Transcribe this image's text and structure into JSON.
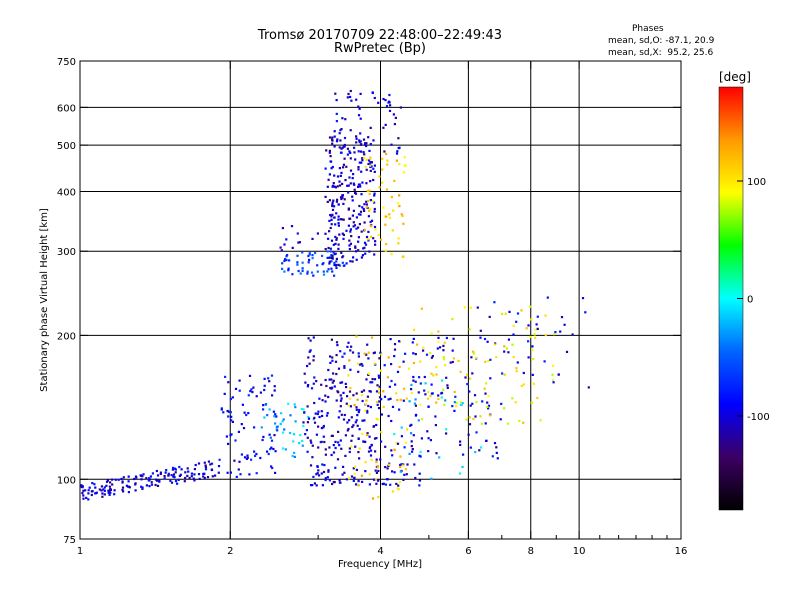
{
  "chart_data": {
    "type": "scatter",
    "title": "Tromsø 20170709 22:48:00–22:49:43",
    "subtitle": "RwPretec (Bp)",
    "xlabel": "Frequency [MHz]",
    "ylabel": "Stationary phase Virtual Height [km]",
    "x_scale": "log",
    "y_scale": "log",
    "xlim": [
      1,
      16
    ],
    "ylim": [
      75,
      750
    ],
    "x_ticks": [
      1,
      2,
      4,
      6,
      8,
      10,
      16
    ],
    "y_ticks": [
      75,
      100,
      200,
      300,
      400,
      500,
      600,
      750
    ],
    "grid_x": [
      2,
      4,
      6,
      8,
      10
    ],
    "grid_y": [
      100,
      200,
      300,
      400,
      500,
      600
    ],
    "phase_stats": {
      "header": "Phases",
      "o_line": "mean, sd,O: -87.1, 20.9",
      "x_line": "mean, sd,X:  95.2, 25.6"
    },
    "colorbar": {
      "label": "[deg]",
      "range": [
        -180,
        180
      ],
      "ticks": [
        100,
        0,
        -100
      ],
      "colors": [
        "#000000",
        "#3c0064",
        "#0000ff",
        "#0064ff",
        "#00ffff",
        "#00ff00",
        "#ffff00",
        "#ff9900",
        "#ff0000"
      ]
    },
    "clusters": [
      {
        "phase": -100,
        "x": [
          1.0,
          1.9
        ],
        "y": [
          90,
          110
        ],
        "n": 160,
        "curve": true
      },
      {
        "phase": -90,
        "x": [
          1.9,
          2.5
        ],
        "y": [
          100,
          165
        ],
        "n": 90
      },
      {
        "phase": -20,
        "x": [
          2.3,
          3.0
        ],
        "y": [
          110,
          145
        ],
        "n": 40
      },
      {
        "phase": -105,
        "x": [
          2.8,
          4.0
        ],
        "y": [
          110,
          200
        ],
        "n": 220
      },
      {
        "phase": -100,
        "x": [
          2.9,
          4.8
        ],
        "y": [
          97,
          108
        ],
        "n": 80
      },
      {
        "phase": 110,
        "x": [
          3.4,
          4.6
        ],
        "y": [
          90,
          200
        ],
        "n": 70
      },
      {
        "phase": -95,
        "x": [
          4.0,
          7.0
        ],
        "y": [
          110,
          200
        ],
        "n": 130
      },
      {
        "phase": 100,
        "x": [
          4.5,
          9.0
        ],
        "y": [
          130,
          230
        ],
        "n": 100
      },
      {
        "phase": -10,
        "x": [
          4.2,
          6.5
        ],
        "y": [
          100,
          170
        ],
        "n": 25
      },
      {
        "phase": -90,
        "x": [
          6.0,
          11.0
        ],
        "y": [
          150,
          240
        ],
        "n": 40
      },
      {
        "phase": -60,
        "x": [
          2.5,
          3.4
        ],
        "y": [
          265,
          300
        ],
        "n": 60
      },
      {
        "phase": -105,
        "x": [
          3.1,
          3.9
        ],
        "y": [
          280,
          520
        ],
        "n": 260
      },
      {
        "phase": 110,
        "x": [
          3.7,
          4.5
        ],
        "y": [
          290,
          500
        ],
        "n": 60
      },
      {
        "phase": -100,
        "x": [
          3.2,
          4.4
        ],
        "y": [
          480,
          650
        ],
        "n": 60
      },
      {
        "phase": -100,
        "x": [
          2.5,
          3.0
        ],
        "y": [
          300,
          340
        ],
        "n": 12
      }
    ]
  }
}
